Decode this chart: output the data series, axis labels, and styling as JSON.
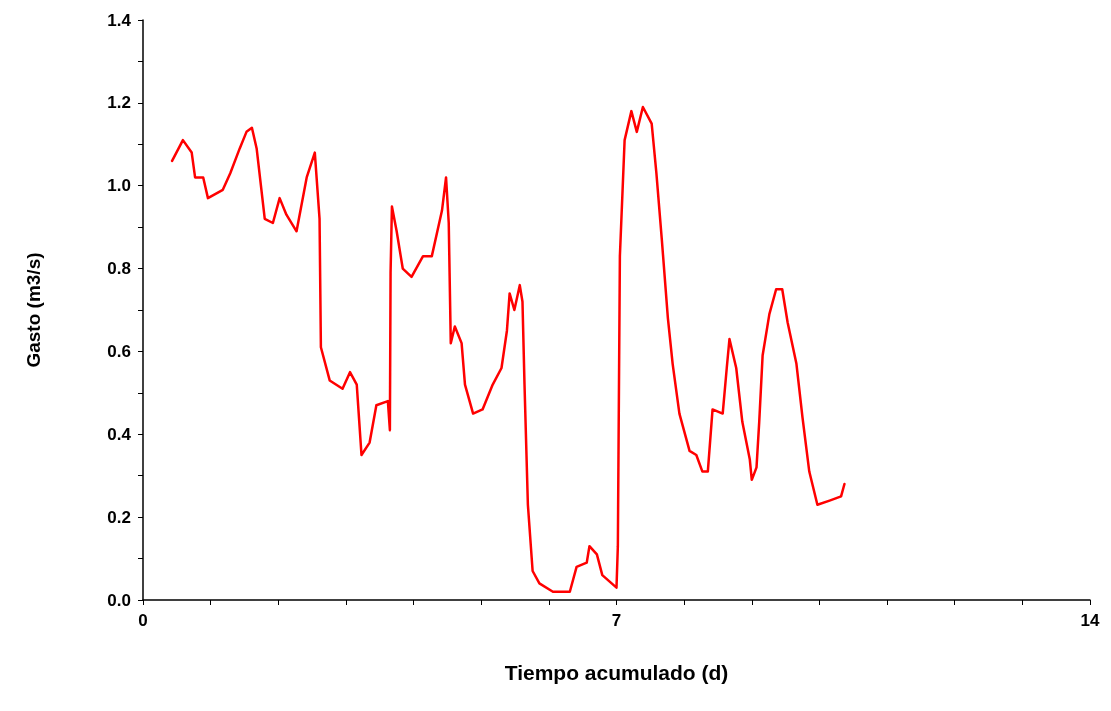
{
  "chart_data": {
    "type": "line",
    "xlabel": "Tiempo acumulado (d)",
    "ylabel": "Gasto (m3/s)",
    "xlim": [
      0,
      14
    ],
    "xticks": [
      0,
      {
        "value": 1,
        "label": null
      },
      {
        "value": 2,
        "label": null
      },
      {
        "value": 3,
        "label": null
      },
      {
        "value": 4,
        "label": null
      },
      {
        "value": 5,
        "label": null
      },
      {
        "value": 6,
        "label": null
      },
      7,
      {
        "value": 8,
        "label": null
      },
      {
        "value": 9,
        "label": null
      },
      {
        "value": 10,
        "label": null
      },
      {
        "value": 11,
        "label": null
      },
      {
        "value": 12,
        "label": null
      },
      {
        "value": 13,
        "label": null
      },
      14
    ],
    "ylim": [
      0,
      1.4
    ],
    "yticks": [
      {
        "value": 0,
        "label": "0.0"
      },
      {
        "value": 0.1,
        "label": null
      },
      {
        "value": 0.2,
        "label": "0.2"
      },
      {
        "value": 0.3,
        "label": null
      },
      {
        "value": 0.4,
        "label": "0.4"
      },
      {
        "value": 0.5,
        "label": null
      },
      {
        "value": 0.6,
        "label": "0.6"
      },
      {
        "value": 0.7,
        "label": null
      },
      {
        "value": 0.8,
        "label": "0.8"
      },
      {
        "value": 0.9,
        "label": null
      },
      {
        "value": 1,
        "label": "1.0"
      },
      {
        "value": 1.1,
        "label": null
      },
      {
        "value": 1.2,
        "label": "1.2"
      },
      {
        "value": 1.3,
        "label": null
      },
      {
        "value": 1.4,
        "label": "1.4"
      }
    ],
    "grid": false,
    "marker": "none",
    "line_style": "solid",
    "series": [
      {
        "color": "#ff0000",
        "x": [
          0.43,
          0.59,
          0.72,
          0.77,
          0.89,
          0.96,
          1.18,
          1.29,
          1.43,
          1.53,
          1.61,
          1.68,
          1.8,
          1.92,
          2.02,
          2.12,
          2.27,
          2.42,
          2.54,
          2.61,
          2.63,
          2.76,
          2.95,
          3.06,
          3.16,
          3.23,
          3.35,
          3.45,
          3.62,
          3.65,
          3.66,
          3.68,
          3.75,
          3.84,
          3.97,
          4.14,
          4.27,
          4.42,
          4.48,
          4.52,
          4.55,
          4.61,
          4.71,
          4.76,
          4.88,
          5.02,
          5.17,
          5.3,
          5.38,
          5.42,
          5.49,
          5.57,
          5.61,
          5.64,
          5.69,
          5.76,
          5.86,
          6.06,
          6.31,
          6.41,
          6.56,
          6.6,
          6.71,
          6.79,
          7.0,
          7.02,
          7.05,
          7.12,
          7.22,
          7.3,
          7.39,
          7.52,
          7.59,
          7.67,
          7.76,
          7.83,
          7.93,
          8.08,
          8.18,
          8.27,
          8.35,
          8.42,
          8.57,
          8.63,
          8.67,
          8.77,
          8.86,
          8.97,
          9.0,
          9.07,
          9.11,
          9.16,
          9.26,
          9.36,
          9.45,
          9.53,
          9.66,
          9.75,
          9.85,
          9.97,
          10.15,
          10.32,
          10.37
        ],
        "values": [
          1.06,
          1.11,
          1.08,
          1.02,
          1.02,
          0.97,
          0.99,
          1.03,
          1.09,
          1.13,
          1.14,
          1.09,
          0.92,
          0.91,
          0.97,
          0.93,
          0.89,
          1.02,
          1.08,
          0.92,
          0.61,
          0.53,
          0.51,
          0.55,
          0.52,
          0.35,
          0.38,
          0.47,
          0.48,
          0.41,
          0.79,
          0.95,
          0.89,
          0.8,
          0.78,
          0.83,
          0.83,
          0.94,
          1.02,
          0.91,
          0.62,
          0.66,
          0.62,
          0.52,
          0.45,
          0.46,
          0.52,
          0.56,
          0.65,
          0.74,
          0.7,
          0.76,
          0.72,
          0.52,
          0.23,
          0.07,
          0.04,
          0.02,
          0.02,
          0.08,
          0.09,
          0.13,
          0.11,
          0.06,
          0.03,
          0.13,
          0.83,
          1.11,
          1.18,
          1.13,
          1.19,
          1.15,
          1.03,
          0.87,
          0.68,
          0.57,
          0.45,
          0.36,
          0.35,
          0.31,
          0.31,
          0.46,
          0.45,
          0.56,
          0.63,
          0.56,
          0.43,
          0.34,
          0.29,
          0.32,
          0.43,
          0.59,
          0.69,
          0.75,
          0.75,
          0.67,
          0.57,
          0.44,
          0.31,
          0.23,
          0.24,
          0.25,
          0.28
        ]
      }
    ]
  }
}
